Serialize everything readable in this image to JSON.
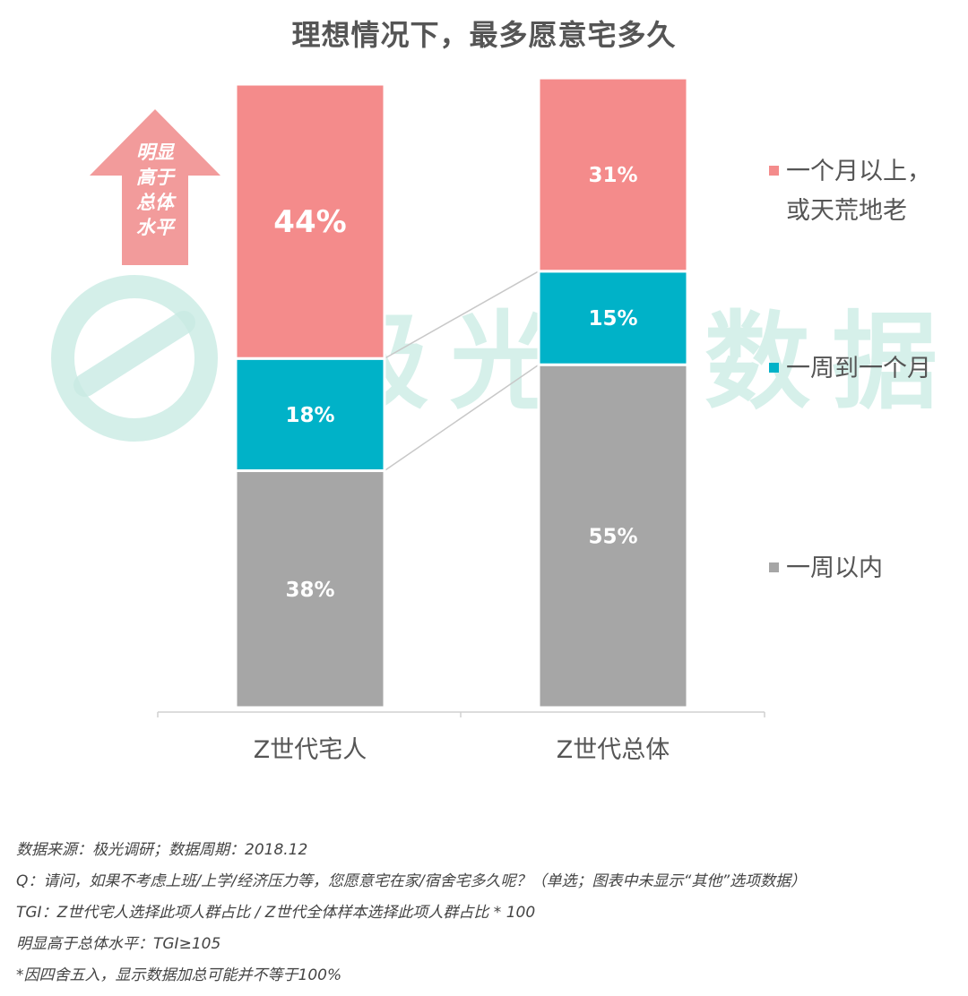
{
  "title": "理想情况下，最多愿意宅多久",
  "watermark": "极光大数据",
  "badge": {
    "lines": [
      "明显",
      "高于",
      "总体",
      "水平"
    ],
    "color": "#f29b9b"
  },
  "colors": {
    "month_plus": "#f48b8b",
    "week_to_month": "#00b2c8",
    "within_week": "#a6a6a6",
    "connector": "#c8c8c8",
    "watermark": "#c9ebe4"
  },
  "chart_data": {
    "type": "bar",
    "stacked": true,
    "categories": [
      "Z世代宅人",
      "Z世代总体"
    ],
    "series": [
      {
        "key": "within_week",
        "name": "一周以内",
        "values": [
          38,
          55
        ],
        "labels": [
          "38%",
          "55%"
        ]
      },
      {
        "key": "week_to_month",
        "name": "一周到一个月",
        "values": [
          18,
          15
        ],
        "labels": [
          "18%",
          "15%"
        ]
      },
      {
        "key": "month_plus",
        "name": "一个月以上，或天荒地老",
        "name_lines": [
          "一个月以上，",
          "或天荒地老"
        ],
        "values": [
          44,
          31
        ],
        "labels": [
          "44%",
          "31%"
        ]
      }
    ],
    "ylim": [
      0,
      100
    ],
    "grid": false,
    "legend_position": "right"
  },
  "notes": [
    "数据来源：极光调研；数据周期：2018.12",
    "Q：请问，如果不考虑上班/上学/经济压力等，您愿意宅在家/宿舍宅多久呢？（单选；图表中未显示“其他”选项数据）",
    "TGI：Z世代宅人选择此项人群占比 / Z世代全体样本选择此项人群占比 * 100",
    "明显高于总体水平：TGI≥105",
    "*因四舍五入，显示数据加总可能并不等于100%"
  ]
}
